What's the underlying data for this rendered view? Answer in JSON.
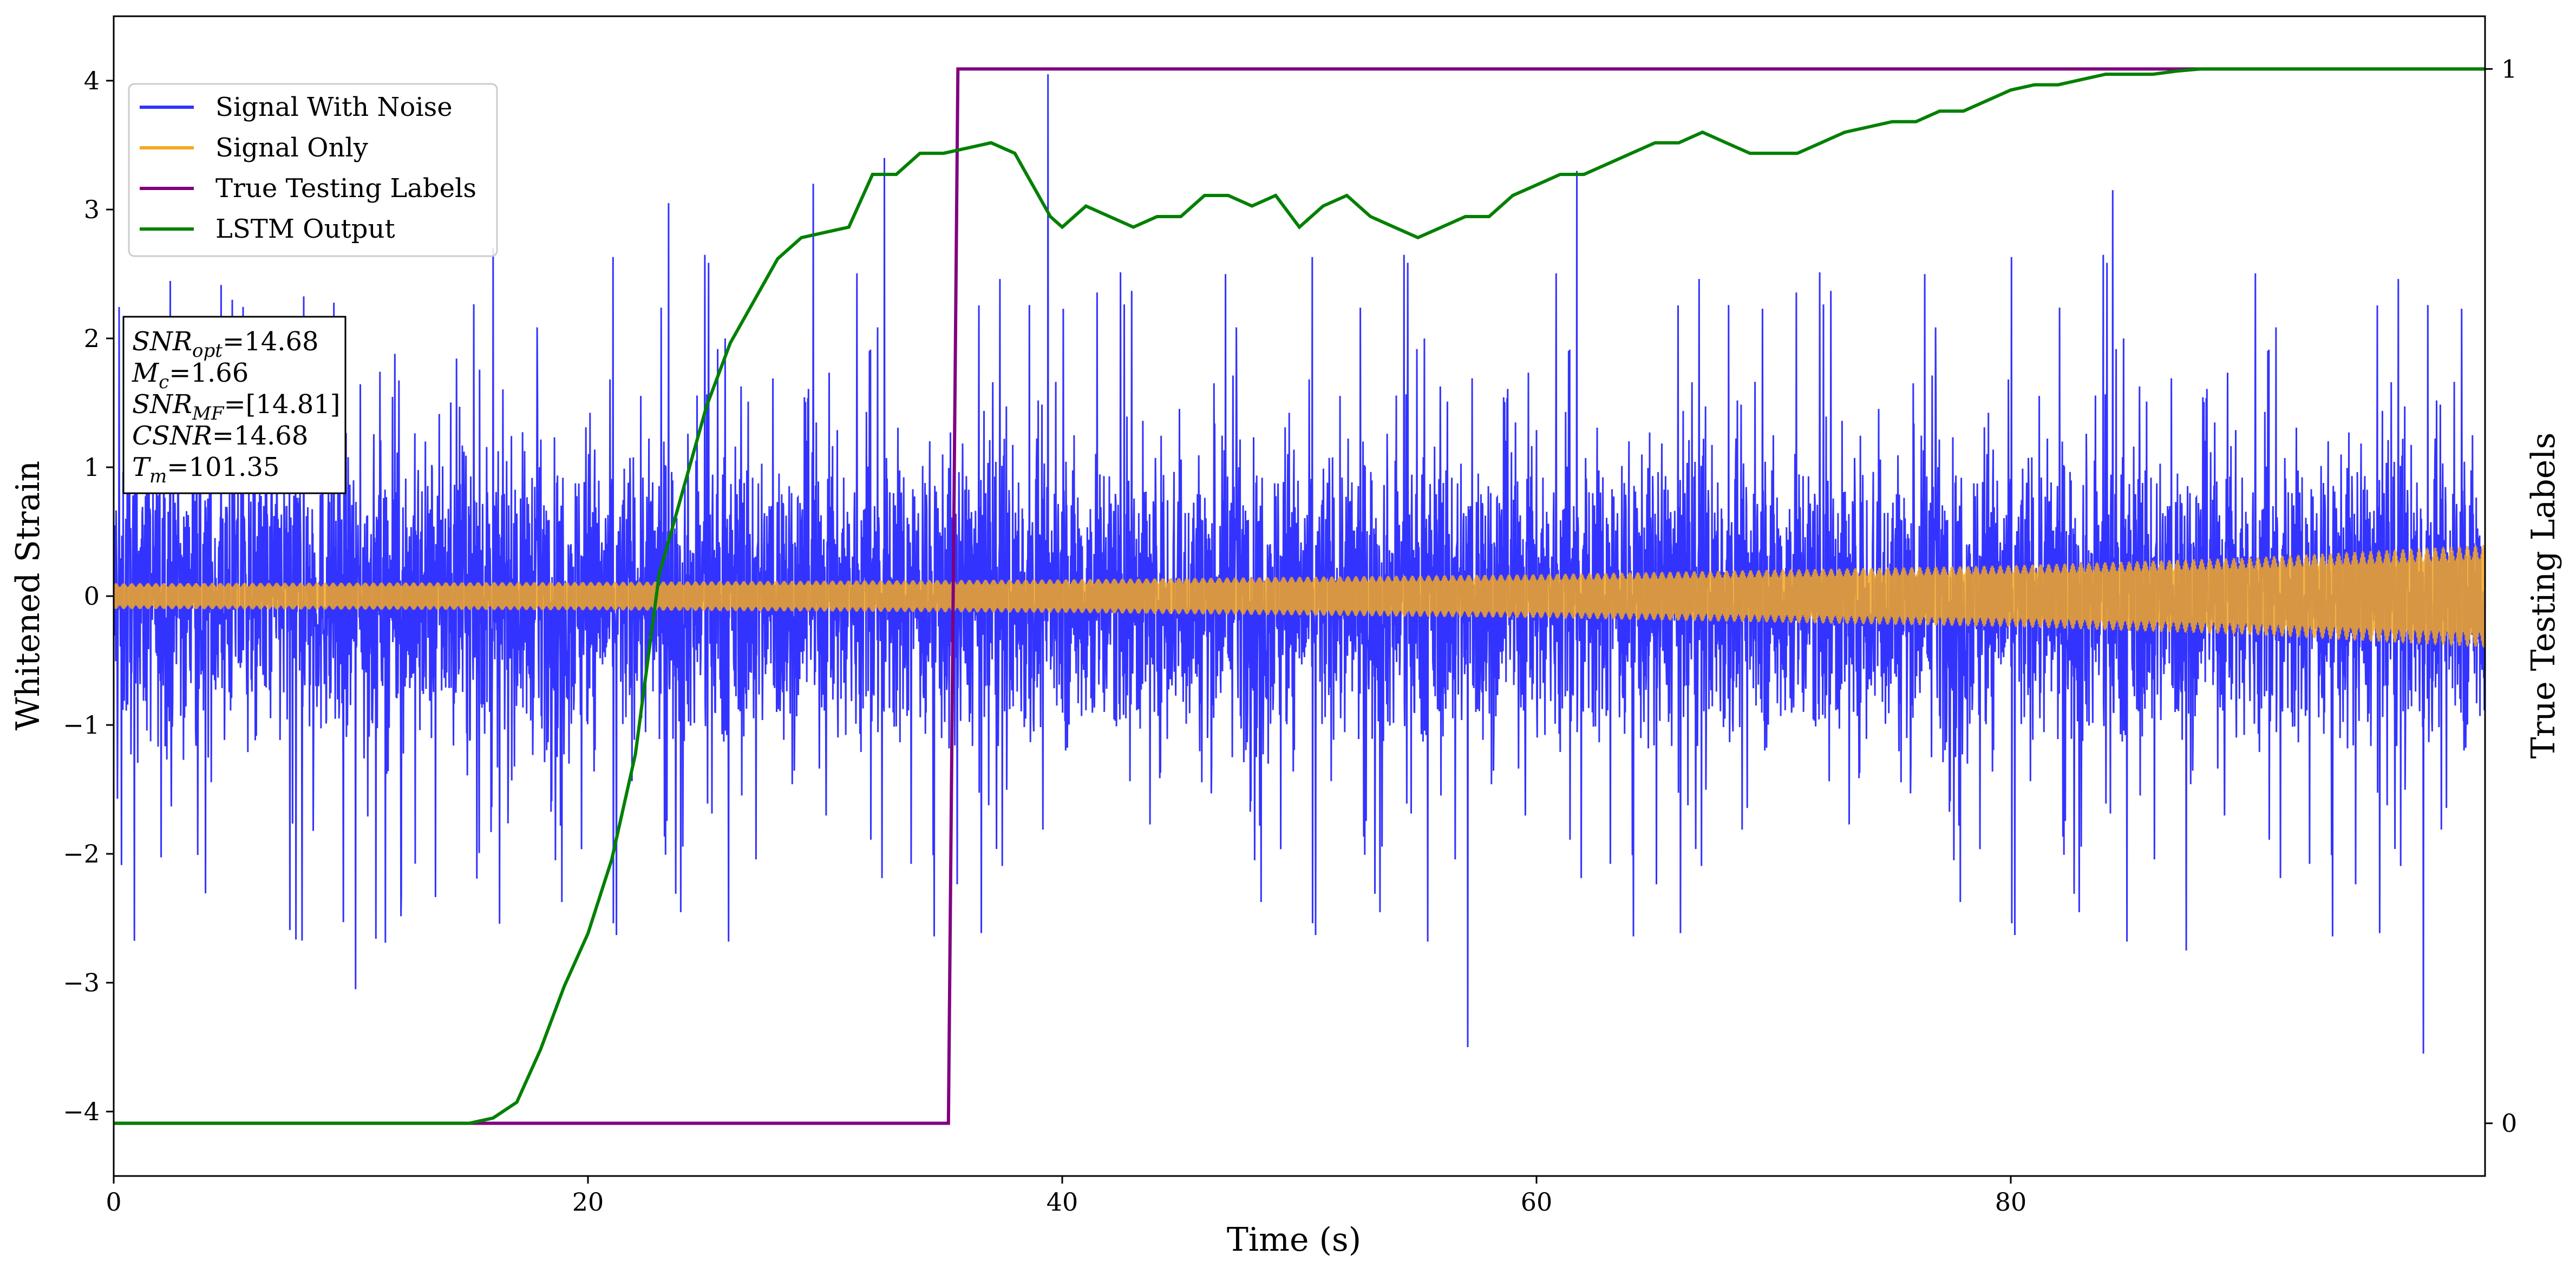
{
  "chart_data": {
    "type": "line",
    "xlabel": "Time (s)",
    "ylabel": "Whitened Strain",
    "y2label": "True Testing Labels",
    "xlim": [
      0,
      100
    ],
    "ylim": [
      -4.5,
      4.5
    ],
    "y2lim": [
      -0.05,
      1.05
    ],
    "x_ticks": [
      0,
      20,
      40,
      60,
      80
    ],
    "x_tick_labels": [
      "0",
      "20",
      "40",
      "60",
      "80"
    ],
    "y_ticks": [
      -4,
      -3,
      -2,
      -1,
      0,
      1,
      2,
      3,
      4
    ],
    "y_tick_labels": [
      "−4",
      "−3",
      "−2",
      "−1",
      "0",
      "1",
      "2",
      "3",
      "4"
    ],
    "y2_ticks": [
      0,
      1
    ],
    "y2_tick_labels": [
      "0",
      "1"
    ],
    "grid": false,
    "legend_position": "top-left",
    "series": [
      {
        "name": "Signal With Noise",
        "color": "#3333ff",
        "axis": "left",
        "description_values": "noise band, typical amplitude about ±1.2, spikes up to about ±3",
        "spike_x": [
          5,
          10.2,
          16,
          23.4,
          29.5,
          32.5,
          39.4,
          57.1,
          61.7,
          84.3,
          87.4,
          97.4
        ],
        "spike_y": [
          2.3,
          -3.05,
          2.7,
          3.05,
          3.2,
          3.4,
          4.05,
          -3.5,
          3.3,
          3.15,
          -2.75,
          -3.55
        ]
      },
      {
        "name": "Signal Only",
        "color": "#f4a823",
        "axis": "left",
        "envelope_x": [
          0,
          20,
          40,
          60,
          80,
          90,
          100
        ],
        "envelope_y": [
          0.1,
          0.11,
          0.13,
          0.17,
          0.24,
          0.3,
          0.4
        ]
      },
      {
        "name": "True Testing Labels",
        "color": "#800080",
        "axis": "right",
        "x": [
          0,
          35.2,
          35.6,
          100
        ],
        "y": [
          0,
          0,
          1,
          1
        ]
      },
      {
        "name": "LSTM Output",
        "color": "#008000",
        "axis": "right",
        "x": [
          0,
          15,
          16,
          17,
          18,
          18.5,
          19,
          20,
          21,
          22,
          23,
          24,
          25,
          26,
          27,
          28,
          29,
          30,
          31,
          32,
          32.5,
          33,
          34,
          35,
          36,
          37,
          38,
          39.5,
          40,
          41,
          42,
          43,
          44,
          45,
          46,
          47,
          48,
          49,
          50,
          51,
          52,
          53,
          54,
          55,
          56,
          57,
          58,
          59,
          60,
          61,
          62,
          63,
          64,
          65,
          66,
          67,
          68,
          69,
          70,
          71,
          72,
          73,
          74,
          75,
          76,
          77,
          78,
          79,
          80,
          81,
          82,
          83,
          84,
          85,
          86,
          87,
          88,
          90,
          92,
          94,
          96,
          98,
          100
        ],
        "y": [
          0,
          0,
          0.005,
          0.02,
          0.07,
          0.1,
          0.13,
          0.18,
          0.25,
          0.35,
          0.52,
          0.6,
          0.68,
          0.74,
          0.78,
          0.82,
          0.84,
          0.845,
          0.85,
          0.9,
          0.9,
          0.9,
          0.92,
          0.92,
          0.925,
          0.93,
          0.92,
          0.86,
          0.85,
          0.87,
          0.86,
          0.85,
          0.86,
          0.86,
          0.88,
          0.88,
          0.87,
          0.88,
          0.85,
          0.87,
          0.88,
          0.86,
          0.85,
          0.84,
          0.85,
          0.86,
          0.86,
          0.88,
          0.89,
          0.9,
          0.9,
          0.91,
          0.92,
          0.93,
          0.93,
          0.94,
          0.93,
          0.92,
          0.92,
          0.92,
          0.93,
          0.94,
          0.945,
          0.95,
          0.95,
          0.96,
          0.96,
          0.97,
          0.98,
          0.985,
          0.985,
          0.99,
          0.995,
          0.995,
          0.995,
          0.998,
          1.0,
          1.0,
          1.0,
          1.0,
          1.0,
          1.0,
          1.0
        ]
      }
    ],
    "annotation": [
      {
        "sym": "SNR",
        "sub": "opt",
        "val": "=14.68"
      },
      {
        "sym": "M",
        "sub": "c",
        "val": "=1.66"
      },
      {
        "sym": "SNR",
        "sub": "MF",
        "val": "=[14.81]"
      },
      {
        "sym": "CSNR",
        "sub": "",
        "val": "=14.68"
      },
      {
        "sym": "T",
        "sub": "m",
        "val": "=101.35"
      }
    ]
  }
}
